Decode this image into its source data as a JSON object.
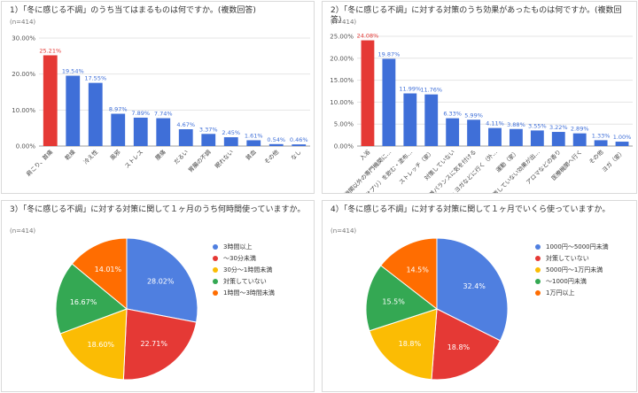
{
  "chart_data": [
    {
      "type": "bar",
      "title": "1）「冬に感じる不調」のうち当てはまるものは何ですか。(複数回答)",
      "n_label": "(n=414)",
      "categories": [
        "肩こり、首痛",
        "乾燥",
        "冷え性",
        "風邪",
        "ストレス",
        "腰痛",
        "だるい",
        "胃腸の不調",
        "眠れない",
        "貧血",
        "その他",
        "なし"
      ],
      "values": [
        25.21,
        19.54,
        17.55,
        8.97,
        7.89,
        7.74,
        4.67,
        3.37,
        2.45,
        1.61,
        0.54,
        0.46
      ],
      "value_labels": [
        "25.21%",
        "19.54%",
        "17.55%",
        "8.97%",
        "7.89%",
        "7.74%",
        "4.67%",
        "3.37%",
        "2.45%",
        "1.61%",
        "0.54%",
        "0.46%"
      ],
      "yticks": [
        "0.00%",
        "10.00%",
        "20.00%",
        "30.00%"
      ],
      "ylim": [
        0,
        30
      ],
      "highlight_color": "#e53935",
      "bar_color": "#3f6fd8",
      "grid": true
    },
    {
      "type": "bar",
      "title": "2）「冬に感じる不調」に対する対策のうち効果があったものは何ですか。(複数回答)",
      "n_label": "(n=414)",
      "categories": [
        "入浴",
        "医療機関以外の専門機関に…",
        "薬（サプリ）を飲む・塗布…",
        "ストレッチ（家）",
        "対策していない",
        "栄養バランスに気を付ける",
        "ジム・ヨガなどに行く（外…",
        "運動（家）",
        "対策していない効果が出…",
        "アロマなどの香り",
        "医療機関へ行く",
        "その他",
        "ヨガ（家）"
      ],
      "values": [
        24.08,
        19.87,
        11.99,
        11.76,
        6.33,
        5.99,
        4.11,
        3.88,
        3.55,
        3.22,
        2.89,
        1.33,
        1.0
      ],
      "value_labels": [
        "24.08%",
        "19.87%",
        "11.99%",
        "11.76%",
        "6.33%",
        "5.99%",
        "4.11%",
        "3.88%",
        "3.55%",
        "3.22%",
        "2.89%",
        "1.33%",
        "1.00%"
      ],
      "yticks": [
        "0.00%",
        "5.00%",
        "10.00%",
        "15.00%",
        "20.00%",
        "25.00%"
      ],
      "ylim": [
        0,
        25
      ],
      "highlight_color": "#e53935",
      "bar_color": "#3f6fd8",
      "grid": true
    },
    {
      "type": "pie",
      "title": "3）「冬に感じる不調」に対する対策に関して１ヶ月のうち何時間使っていますか。",
      "n_label": "(n=414)",
      "slices": [
        {
          "label": "3時間以上",
          "value": 28.02,
          "text": "28.02%",
          "color": "#4f7fe0"
        },
        {
          "label": "〜30分未満",
          "value": 22.71,
          "text": "22.71%",
          "color": "#e53935"
        },
        {
          "label": "30分〜1時間未満",
          "value": 18.6,
          "text": "18.60%",
          "color": "#fbbc04"
        },
        {
          "label": "対策していない",
          "value": 16.67,
          "text": "16.67%",
          "color": "#34a853"
        },
        {
          "label": "1時間〜3時間未満",
          "value": 14.01,
          "text": "14.01%",
          "color": "#ff6d01"
        }
      ],
      "legend_position": "right"
    },
    {
      "type": "pie",
      "title": "4）「冬に感じる不調」に対する対策に関して１ヶ月でいくら使っていますか。",
      "n_label": "(n=414)",
      "slices": [
        {
          "label": "1000円〜5000円未満",
          "value": 32.4,
          "text": "32.4%",
          "color": "#4f7fe0"
        },
        {
          "label": "対策していない",
          "value": 18.8,
          "text": "18.8%",
          "color": "#e53935"
        },
        {
          "label": "5000円〜1万円未満",
          "value": 18.8,
          "text": "18.8%",
          "color": "#fbbc04"
        },
        {
          "label": "〜1000円未満",
          "value": 15.5,
          "text": "15.5%",
          "color": "#34a853"
        },
        {
          "label": "1万円以上",
          "value": 14.5,
          "text": "14.5%",
          "color": "#ff6d01"
        }
      ],
      "legend_position": "right"
    }
  ]
}
